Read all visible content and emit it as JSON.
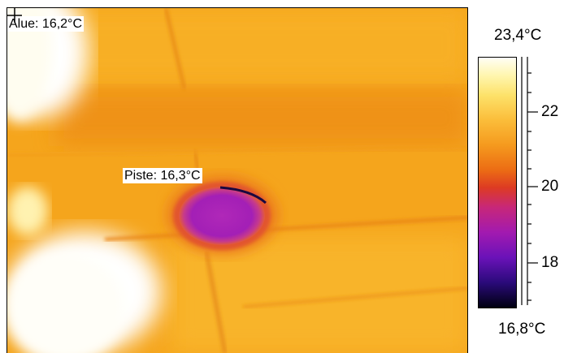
{
  "measurements": {
    "area_label": "Alue: 16,2°C",
    "spot_label": "Piste: 16,3°C"
  },
  "scale": {
    "max_label": "23,4°C",
    "min_label": "16,8°C",
    "tick_labels": [
      "22",
      "20",
      "18"
    ]
  },
  "colors": {
    "background_warm": "#f5a81c",
    "hot_white": "#fffef5",
    "cold_spot": "#a21ab0",
    "ring": "#e8602a"
  }
}
